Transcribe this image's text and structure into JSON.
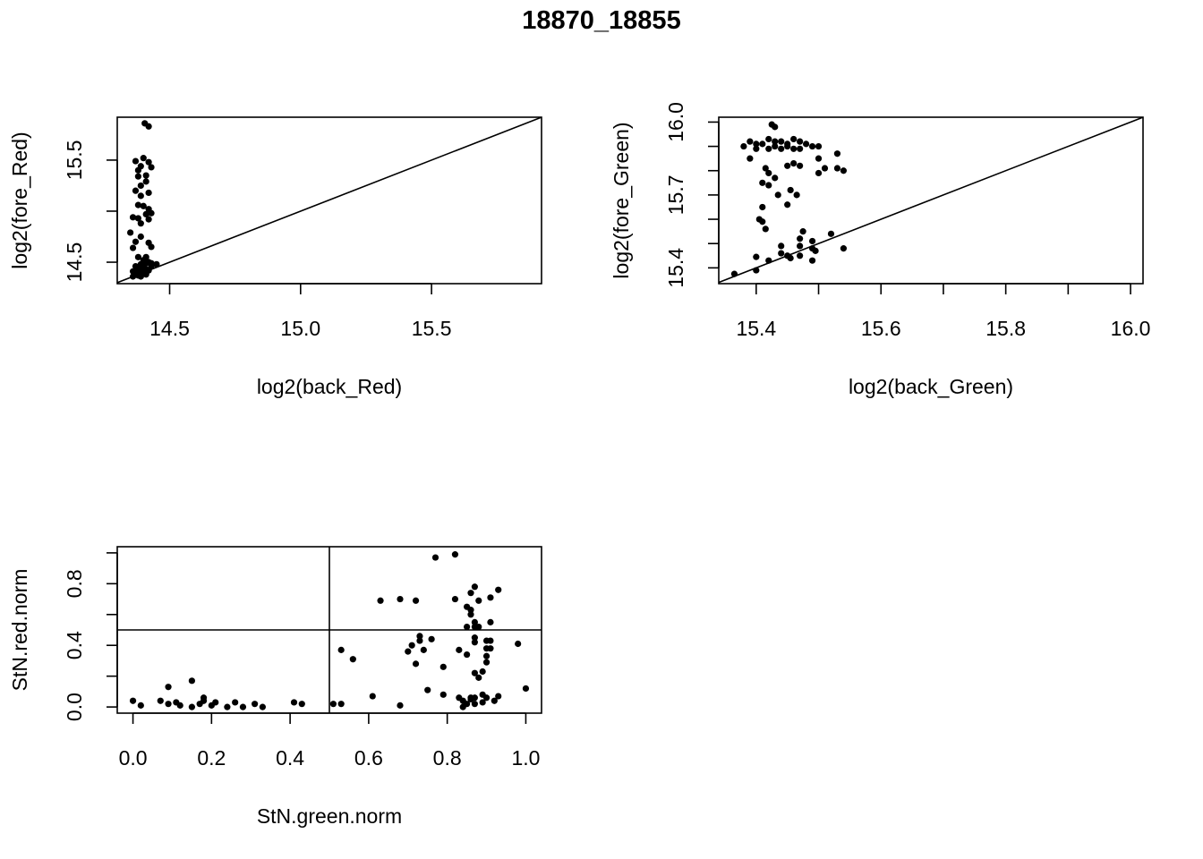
{
  "figure": {
    "title": "18870_18855"
  },
  "chart_data": [
    {
      "type": "scatter",
      "id": "red",
      "xlabel": "log2(back_Red)",
      "ylabel": "log2(fore_Red)",
      "xlim": [
        14.3,
        15.92
      ],
      "ylim": [
        14.29,
        15.92
      ],
      "xticks": [
        14.5,
        15.0,
        15.5
      ],
      "xtick_labels": [
        "14.5",
        "15.0",
        "15.5"
      ],
      "yticks": [
        14.5,
        15.0,
        15.5
      ],
      "ytick_labels": [
        "14.5",
        "",
        "15.5"
      ],
      "reference_lines": [
        {
          "kind": "identity"
        }
      ],
      "points": [
        [
          14.405,
          15.86
        ],
        [
          14.42,
          15.83
        ],
        [
          14.37,
          15.49
        ],
        [
          14.39,
          15.44
        ],
        [
          14.38,
          15.4
        ],
        [
          14.4,
          15.52
        ],
        [
          14.42,
          15.48
        ],
        [
          14.43,
          15.43
        ],
        [
          14.38,
          15.34
        ],
        [
          14.41,
          15.35
        ],
        [
          14.39,
          15.25
        ],
        [
          14.41,
          15.29
        ],
        [
          14.37,
          15.2
        ],
        [
          14.42,
          15.18
        ],
        [
          14.39,
          15.15
        ],
        [
          14.38,
          15.06
        ],
        [
          14.4,
          15.05
        ],
        [
          14.42,
          15.02
        ],
        [
          14.36,
          14.94
        ],
        [
          14.38,
          14.93
        ],
        [
          14.41,
          14.97
        ],
        [
          14.43,
          14.98
        ],
        [
          14.39,
          14.88
        ],
        [
          14.42,
          14.92
        ],
        [
          14.35,
          14.79
        ],
        [
          14.39,
          14.75
        ],
        [
          14.37,
          14.7
        ],
        [
          14.42,
          14.69
        ],
        [
          14.36,
          14.64
        ],
        [
          14.43,
          14.65
        ],
        [
          14.38,
          14.55
        ],
        [
          14.41,
          14.55
        ],
        [
          14.4,
          14.52
        ],
        [
          14.42,
          14.5
        ],
        [
          14.39,
          14.48
        ],
        [
          14.41,
          14.49
        ],
        [
          14.43,
          14.49
        ],
        [
          14.45,
          14.48
        ],
        [
          14.37,
          14.46
        ],
        [
          14.4,
          14.45
        ],
        [
          14.43,
          14.46
        ],
        [
          14.38,
          14.43
        ],
        [
          14.41,
          14.43
        ],
        [
          14.36,
          14.41
        ],
        [
          14.39,
          14.41
        ],
        [
          14.42,
          14.42
        ],
        [
          14.37,
          14.39
        ],
        [
          14.4,
          14.39
        ],
        [
          14.38,
          14.37
        ],
        [
          14.41,
          14.38
        ],
        [
          14.36,
          14.36
        ],
        [
          14.39,
          14.36
        ],
        [
          14.4,
          14.44
        ]
      ]
    },
    {
      "type": "scatter",
      "id": "green",
      "xlabel": "log2(back_Green)",
      "ylabel": "log2(fore_Green)",
      "xlim": [
        15.34,
        16.02
      ],
      "ylim": [
        15.335,
        16.02
      ],
      "xticks": [
        15.4,
        15.5,
        15.6,
        15.7,
        15.8,
        15.9,
        16.0
      ],
      "xtick_labels": [
        "15.4",
        "",
        "15.6",
        "",
        "15.8",
        "",
        "16.0"
      ],
      "yticks": [
        15.4,
        15.5,
        15.6,
        15.7,
        15.8,
        15.9,
        16.0
      ],
      "ytick_labels": [
        "15.4",
        "",
        "",
        "15.7",
        "",
        "",
        "16.0"
      ],
      "reference_lines": [
        {
          "kind": "identity"
        }
      ],
      "points": [
        [
          15.425,
          15.99
        ],
        [
          15.43,
          15.98
        ],
        [
          15.39,
          15.92
        ],
        [
          15.4,
          15.91
        ],
        [
          15.42,
          15.93
        ],
        [
          15.44,
          15.92
        ],
        [
          15.46,
          15.93
        ],
        [
          15.47,
          15.92
        ],
        [
          15.38,
          15.9
        ],
        [
          15.41,
          15.91
        ],
        [
          15.43,
          15.9
        ],
        [
          15.45,
          15.91
        ],
        [
          15.48,
          15.91
        ],
        [
          15.49,
          15.9
        ],
        [
          15.5,
          15.9
        ],
        [
          15.46,
          15.89
        ],
        [
          15.44,
          15.89
        ],
        [
          15.42,
          15.89
        ],
        [
          15.4,
          15.89
        ],
        [
          15.47,
          15.89
        ],
        [
          15.45,
          15.9
        ],
        [
          15.43,
          15.92
        ],
        [
          15.39,
          15.85
        ],
        [
          15.53,
          15.87
        ],
        [
          15.5,
          15.85
        ],
        [
          15.46,
          15.83
        ],
        [
          15.47,
          15.82
        ],
        [
          15.415,
          15.81
        ],
        [
          15.45,
          15.82
        ],
        [
          15.51,
          15.81
        ],
        [
          15.53,
          15.81
        ],
        [
          15.54,
          15.8
        ],
        [
          15.5,
          15.79
        ],
        [
          15.42,
          15.79
        ],
        [
          15.43,
          15.77
        ],
        [
          15.41,
          15.75
        ],
        [
          15.42,
          15.74
        ],
        [
          15.455,
          15.72
        ],
        [
          15.465,
          15.7
        ],
        [
          15.435,
          15.7
        ],
        [
          15.45,
          15.66
        ],
        [
          15.41,
          15.65
        ],
        [
          15.405,
          15.6
        ],
        [
          15.41,
          15.59
        ],
        [
          15.415,
          15.56
        ],
        [
          15.475,
          15.55
        ],
        [
          15.52,
          15.54
        ],
        [
          15.47,
          15.52
        ],
        [
          15.49,
          15.51
        ],
        [
          15.44,
          15.49
        ],
        [
          15.47,
          15.49
        ],
        [
          15.54,
          15.48
        ],
        [
          15.49,
          15.48
        ],
        [
          15.495,
          15.47
        ],
        [
          15.44,
          15.46
        ],
        [
          15.45,
          15.45
        ],
        [
          15.47,
          15.45
        ],
        [
          15.455,
          15.44
        ],
        [
          15.49,
          15.43
        ],
        [
          15.4,
          15.445
        ],
        [
          15.42,
          15.43
        ],
        [
          15.4,
          15.39
        ],
        [
          15.365,
          15.375
        ]
      ]
    },
    {
      "type": "scatter",
      "id": "stn",
      "xlabel": "StN.green.norm",
      "ylabel": "StN.red.norm",
      "xlim": [
        -0.04,
        1.04
      ],
      "ylim": [
        -0.04,
        1.04
      ],
      "xticks": [
        0.0,
        0.2,
        0.4,
        0.6,
        0.8,
        1.0
      ],
      "xtick_labels": [
        "0.0",
        "0.2",
        "0.4",
        "0.6",
        "0.8",
        "1.0"
      ],
      "yticks": [
        0.0,
        0.2,
        0.4,
        0.6,
        0.8,
        1.0
      ],
      "ytick_labels": [
        "0.0",
        "",
        "0.4",
        "",
        "0.8",
        ""
      ],
      "reference_lines": [
        {
          "kind": "vertical",
          "x": 0.5
        },
        {
          "kind": "horizontal",
          "y": 0.5
        }
      ],
      "points": [
        [
          0.0,
          0.04
        ],
        [
          0.02,
          0.01
        ],
        [
          0.07,
          0.04
        ],
        [
          0.09,
          0.13
        ],
        [
          0.09,
          0.02
        ],
        [
          0.11,
          0.03
        ],
        [
          0.12,
          0.01
        ],
        [
          0.15,
          0.17
        ],
        [
          0.15,
          0.0
        ],
        [
          0.17,
          0.02
        ],
        [
          0.18,
          0.06
        ],
        [
          0.18,
          0.04
        ],
        [
          0.2,
          0.01
        ],
        [
          0.21,
          0.03
        ],
        [
          0.24,
          0.0
        ],
        [
          0.26,
          0.03
        ],
        [
          0.28,
          0.0
        ],
        [
          0.31,
          0.02
        ],
        [
          0.33,
          0.0
        ],
        [
          0.41,
          0.03
        ],
        [
          0.43,
          0.02
        ],
        [
          0.51,
          0.02
        ],
        [
          0.53,
          0.02
        ],
        [
          0.53,
          0.37
        ],
        [
          0.56,
          0.31
        ],
        [
          0.61,
          0.07
        ],
        [
          0.63,
          0.69
        ],
        [
          0.68,
          0.7
        ],
        [
          0.68,
          0.01
        ],
        [
          0.7,
          0.36
        ],
        [
          0.71,
          0.4
        ],
        [
          0.72,
          0.69
        ],
        [
          0.72,
          0.28
        ],
        [
          0.73,
          0.46
        ],
        [
          0.73,
          0.43
        ],
        [
          0.74,
          0.37
        ],
        [
          0.75,
          0.11
        ],
        [
          0.76,
          0.44
        ],
        [
          0.77,
          0.97
        ],
        [
          0.79,
          0.08
        ],
        [
          0.79,
          0.26
        ],
        [
          0.82,
          0.99
        ],
        [
          0.82,
          0.7
        ],
        [
          0.83,
          0.37
        ],
        [
          0.83,
          0.06
        ],
        [
          0.84,
          0.0
        ],
        [
          0.84,
          0.04
        ],
        [
          0.85,
          0.34
        ],
        [
          0.85,
          0.52
        ],
        [
          0.85,
          0.65
        ],
        [
          0.85,
          0.02
        ],
        [
          0.86,
          0.6
        ],
        [
          0.86,
          0.63
        ],
        [
          0.86,
          0.06
        ],
        [
          0.86,
          0.74
        ],
        [
          0.86,
          0.05
        ],
        [
          0.87,
          0.55
        ],
        [
          0.87,
          0.52
        ],
        [
          0.87,
          0.45
        ],
        [
          0.87,
          0.42
        ],
        [
          0.87,
          0.22
        ],
        [
          0.87,
          0.06
        ],
        [
          0.87,
          0.02
        ],
        [
          0.87,
          0.78
        ],
        [
          0.88,
          0.69
        ],
        [
          0.88,
          0.52
        ],
        [
          0.88,
          0.19
        ],
        [
          0.89,
          0.23
        ],
        [
          0.89,
          0.03
        ],
        [
          0.89,
          0.08
        ],
        [
          0.9,
          0.38
        ],
        [
          0.9,
          0.33
        ],
        [
          0.9,
          0.29
        ],
        [
          0.9,
          0.43
        ],
        [
          0.9,
          0.06
        ],
        [
          0.91,
          0.71
        ],
        [
          0.91,
          0.55
        ],
        [
          0.91,
          0.38
        ],
        [
          0.91,
          0.43
        ],
        [
          0.92,
          0.04
        ],
        [
          0.93,
          0.07
        ],
        [
          0.93,
          0.76
        ],
        [
          0.98,
          0.41
        ],
        [
          1.0,
          0.12
        ]
      ]
    }
  ]
}
